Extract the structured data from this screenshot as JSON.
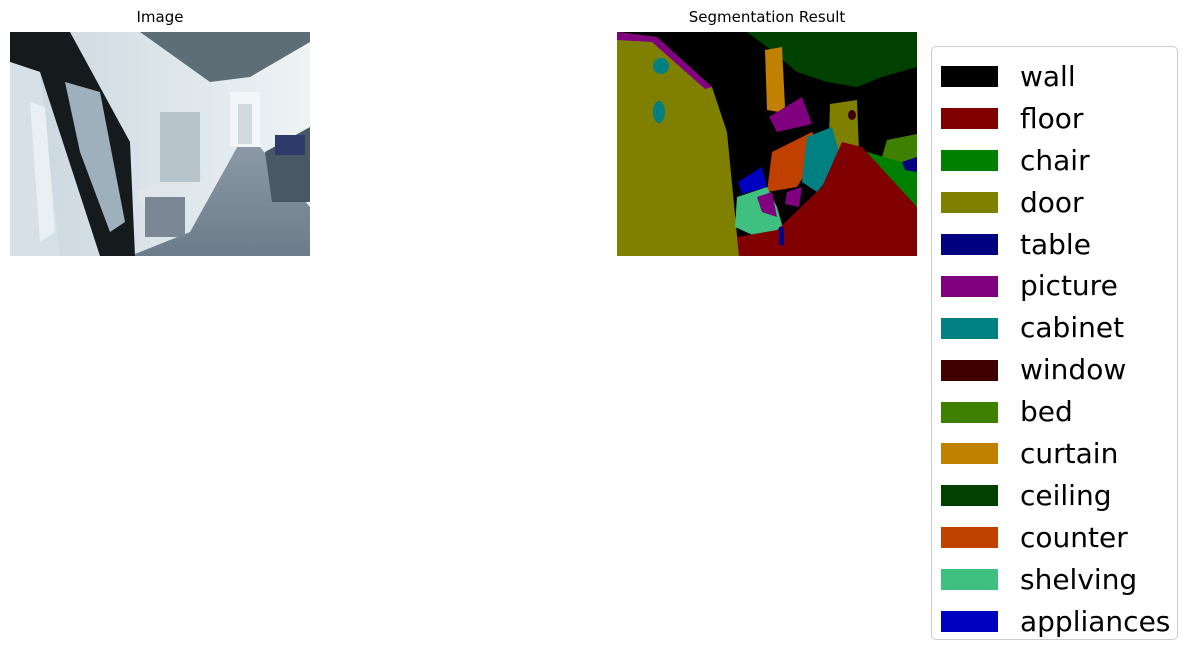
{
  "panels": {
    "left_title": "Image",
    "right_title": "Segmentation Result"
  },
  "legend": {
    "items": [
      {
        "label": "wall",
        "color": "#000000"
      },
      {
        "label": "floor",
        "color": "#800000"
      },
      {
        "label": "chair",
        "color": "#008000"
      },
      {
        "label": "door",
        "color": "#808000"
      },
      {
        "label": "table",
        "color": "#000080"
      },
      {
        "label": "picture",
        "color": "#800080"
      },
      {
        "label": "cabinet",
        "color": "#008080"
      },
      {
        "label": "window",
        "color": "#400000"
      },
      {
        "label": "bed",
        "color": "#408000"
      },
      {
        "label": "curtain",
        "color": "#c08000"
      },
      {
        "label": "ceiling",
        "color": "#004000"
      },
      {
        "label": "counter",
        "color": "#c04000"
      },
      {
        "label": "shelving",
        "color": "#40c080"
      },
      {
        "label": "appliances",
        "color": "#0000c0"
      }
    ]
  }
}
